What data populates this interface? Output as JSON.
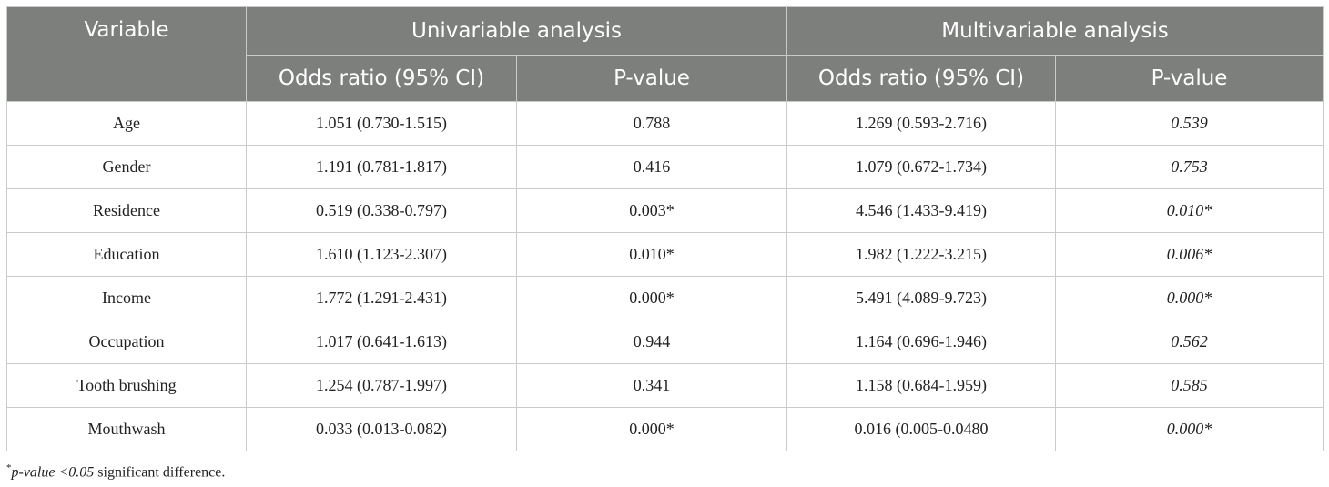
{
  "header": {
    "variable": "Variable",
    "univariable": "Univariable analysis",
    "multivariable": "Multivariable analysis",
    "odds_ratio": "Odds ratio (95% CI)",
    "p_value": "P-value"
  },
  "rows": [
    {
      "variable": "Age",
      "uni_or": "1.051 (0.730-1.515)",
      "uni_p": "0.788",
      "multi_or": "1.269 (0.593-2.716)",
      "multi_p": "0.539"
    },
    {
      "variable": "Gender",
      "uni_or": "1.191 (0.781-1.817)",
      "uni_p": "0.416",
      "multi_or": "1.079 (0.672-1.734)",
      "multi_p": "0.753"
    },
    {
      "variable": "Residence",
      "uni_or": "0.519 (0.338-0.797)",
      "uni_p": "0.003*",
      "multi_or": "4.546 (1.433-9.419)",
      "multi_p": "0.010*"
    },
    {
      "variable": "Education",
      "uni_or": "1.610 (1.123-2.307)",
      "uni_p": "0.010*",
      "multi_or": "1.982 (1.222-3.215)",
      "multi_p": "0.006*"
    },
    {
      "variable": "Income",
      "uni_or": "1.772 (1.291-2.431)",
      "uni_p": "0.000*",
      "multi_or": "5.491 (4.089-9.723)",
      "multi_p": "0.000*"
    },
    {
      "variable": "Occupation",
      "uni_or": "1.017 (0.641-1.613)",
      "uni_p": "0.944",
      "multi_or": "1.164 (0.696-1.946)",
      "multi_p": "0.562"
    },
    {
      "variable": "Tooth brushing",
      "uni_or": "1.254 (0.787-1.997)",
      "uni_p": "0.341",
      "multi_or": "1.158 (0.684-1.959)",
      "multi_p": "0.585"
    },
    {
      "variable": "Mouthwash",
      "uni_or": "0.033 (0.013-0.082)",
      "uni_p": "0.000*",
      "multi_or": "0.016 (0.005-0.0480",
      "multi_p": "0.000*"
    }
  ],
  "footnote": {
    "mark": "*",
    "italic": "p-value <0.05",
    "text": " significant difference."
  }
}
